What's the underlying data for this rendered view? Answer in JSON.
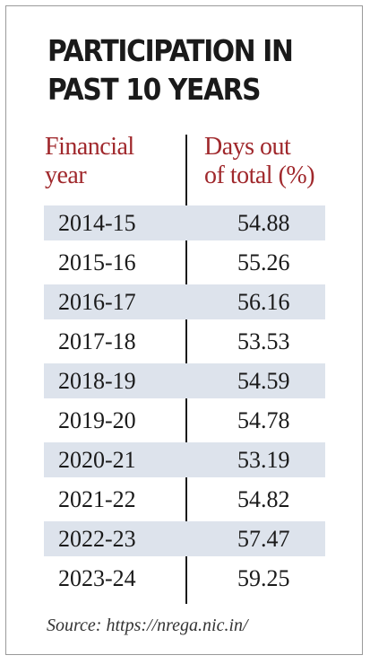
{
  "title_lines": [
    "PARTICIPATION IN",
    "PAST 10 YEARS"
  ],
  "header": {
    "year_lines": [
      "Financial",
      "year"
    ],
    "days_lines": [
      "Days out",
      "of total (%)"
    ]
  },
  "source": "Source: https://nrega.nic.in/",
  "colors": {
    "header_text": "#a0282c",
    "row_shade": "#dde3ec"
  },
  "chart_data": {
    "type": "table",
    "title": "PARTICIPATION IN PAST 10 YEARS",
    "columns": [
      "Financial year",
      "Days out of total (%)"
    ],
    "rows": [
      {
        "year": "2014-15",
        "value": "54.88"
      },
      {
        "year": "2015-16",
        "value": "55.26"
      },
      {
        "year": "2016-17",
        "value": "56.16"
      },
      {
        "year": "2017-18",
        "value": "53.53"
      },
      {
        "year": "2018-19",
        "value": "54.59"
      },
      {
        "year": "2019-20",
        "value": "54.78"
      },
      {
        "year": "2020-21",
        "value": "53.19"
      },
      {
        "year": "2021-22",
        "value": "54.82"
      },
      {
        "year": "2022-23",
        "value": "57.47"
      },
      {
        "year": "2023-24",
        "value": "59.25"
      }
    ]
  }
}
